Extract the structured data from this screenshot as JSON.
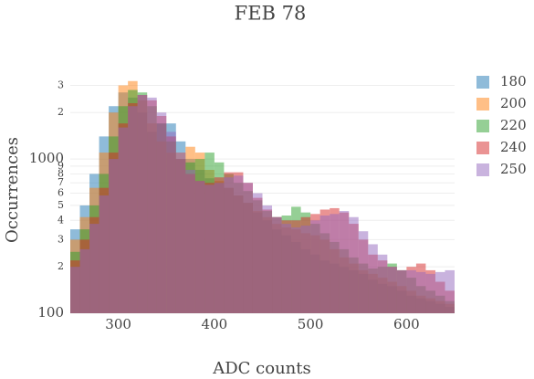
{
  "chart_data": {
    "type": "histogram",
    "title": "FEB 78",
    "xlabel": "ADC counts",
    "ylabel": "Occurrences",
    "bins": [
      250,
      260,
      270,
      280,
      290,
      300,
      310,
      320,
      330,
      340,
      350,
      360,
      370,
      380,
      390,
      400,
      410,
      420,
      430,
      440,
      450,
      460,
      470,
      480,
      490,
      500,
      510,
      520,
      530,
      540,
      550,
      560,
      570,
      580,
      590,
      600,
      610,
      620,
      630,
      640,
      650
    ],
    "series": [
      {
        "name": "180",
        "color": "#1f77b4",
        "values": [
          350,
          500,
          800,
          1400,
          2200,
          2700,
          2500,
          2000,
          1500,
          1700,
          1700,
          1300,
          1000,
          850,
          750,
          700,
          650,
          580,
          520,
          450,
          400,
          350,
          320,
          290,
          260,
          240,
          220,
          210,
          200,
          190,
          180,
          165,
          155,
          150,
          140,
          130,
          125,
          120,
          115,
          110
        ]
      },
      {
        "name": "200",
        "color": "#ff7f0e",
        "values": [
          300,
          420,
          650,
          1100,
          2000,
          3000,
          3200,
          2400,
          1700,
          1300,
          1100,
          1100,
          1200,
          1100,
          850,
          720,
          650,
          580,
          520,
          460,
          420,
          380,
          360,
          350,
          330,
          320,
          300,
          260,
          230,
          210,
          190,
          180,
          170,
          160,
          150,
          140,
          130,
          125,
          120,
          115
        ]
      },
      {
        "name": "220",
        "color": "#2ca02c",
        "values": [
          250,
          350,
          500,
          800,
          1400,
          2200,
          2800,
          2700,
          2200,
          1700,
          1300,
          1000,
          950,
          1000,
          1100,
          950,
          800,
          700,
          620,
          540,
          460,
          420,
          430,
          490,
          450,
          380,
          330,
          290,
          260,
          230,
          210,
          195,
          200,
          210,
          190,
          170,
          150,
          140,
          130,
          120
        ]
      },
      {
        "name": "240",
        "color": "#d62728",
        "values": [
          220,
          300,
          420,
          650,
          1100,
          1700,
          2300,
          2600,
          2400,
          1900,
          1400,
          1000,
          800,
          720,
          700,
          760,
          820,
          820,
          700,
          560,
          470,
          420,
          400,
          400,
          420,
          440,
          470,
          480,
          450,
          380,
          300,
          240,
          220,
          200,
          190,
          200,
          210,
          190,
          160,
          140
        ]
      },
      {
        "name": "250",
        "color": "#9467bd",
        "values": [
          200,
          260,
          380,
          580,
          1000,
          1600,
          2200,
          2600,
          2500,
          2000,
          1500,
          1100,
          850,
          720,
          680,
          700,
          760,
          780,
          700,
          600,
          500,
          420,
          380,
          360,
          370,
          400,
          430,
          440,
          460,
          420,
          340,
          280,
          240,
          200,
          190,
          190,
          185,
          180,
          185,
          190
        ]
      }
    ],
    "opacity": 0.5,
    "log_y": true,
    "xlim": [
      250,
      650
    ],
    "xticks": [
      300,
      400,
      500,
      600
    ],
    "ylim": [
      100,
      3860
    ],
    "yticks": [
      100,
      {
        "value": 200,
        "label": "2"
      },
      {
        "value": 300,
        "label": "3"
      },
      {
        "value": 400,
        "label": "4"
      },
      {
        "value": 500,
        "label": "5"
      },
      {
        "value": 600,
        "label": "6"
      },
      {
        "value": 700,
        "label": "7"
      },
      {
        "value": 800,
        "label": "8"
      },
      {
        "value": 900,
        "label": "9"
      },
      1000,
      {
        "value": 2000,
        "label": "2"
      },
      {
        "value": 3000,
        "label": "3"
      }
    ],
    "grid": true,
    "legend": "right"
  }
}
